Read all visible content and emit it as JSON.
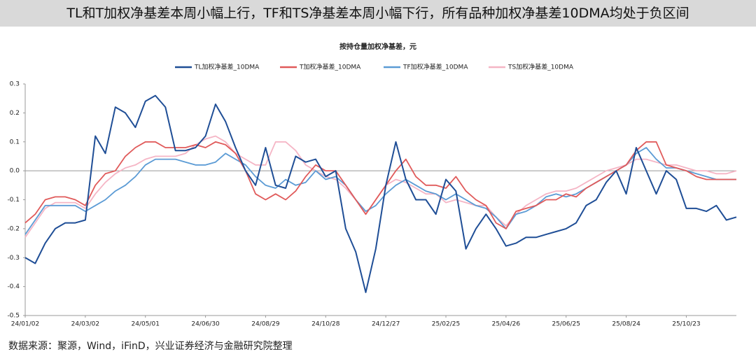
{
  "chart_data": {
    "type": "line",
    "title": "TL和T加权净基差本周小幅上行，TF和TS净基差本周小幅下行，所有品种加权净基差10DMA均处于负区间",
    "subtitle": "按持仓量加权净基差，元",
    "source": "数据来源：聚源，Wind，iFinD，兴业证券经济与金融研究院整理",
    "categories": [
      "24/01/02",
      null,
      null,
      null,
      null,
      null,
      "24/03/02",
      null,
      null,
      null,
      null,
      null,
      "24/05/01",
      null,
      null,
      null,
      null,
      null,
      "24/06/30",
      null,
      null,
      null,
      null,
      null,
      "24/08/29",
      null,
      null,
      null,
      null,
      null,
      "24/10/28",
      null,
      null,
      null,
      null,
      null,
      "24/12/27",
      null,
      null,
      null,
      null,
      null,
      "25/02/25",
      null,
      null,
      null,
      null,
      null,
      "25/04/26",
      null,
      null,
      null,
      null,
      null,
      "25/06/25",
      null,
      null,
      null,
      null,
      null,
      "25/08/24",
      null,
      null,
      null,
      null,
      null,
      "25/10/23",
      null,
      null,
      null,
      null,
      null
    ],
    "ylim": [
      -0.5,
      0.3
    ],
    "yticks": [
      -0.5,
      -0.4,
      -0.3,
      -0.2,
      -0.1,
      {
        "value": 0,
        "label": "0.0"
      },
      0.1,
      0.2,
      0.3
    ],
    "series": [
      {
        "name": "TL加权净基差_10DMA",
        "color": "#1f4e96",
        "values": [
          -0.3,
          -0.32,
          -0.25,
          -0.2,
          -0.18,
          -0.18,
          -0.17,
          0.12,
          0.06,
          0.22,
          0.2,
          0.15,
          0.24,
          0.26,
          0.22,
          0.07,
          0.07,
          0.08,
          0.12,
          0.23,
          0.17,
          0.08,
          0.0,
          -0.05,
          0.08,
          -0.05,
          -0.06,
          0.05,
          0.03,
          0.04,
          -0.02,
          0.0,
          -0.2,
          -0.28,
          -0.42,
          -0.27,
          -0.05,
          0.1,
          -0.03,
          -0.1,
          -0.1,
          -0.15,
          -0.03,
          -0.07,
          -0.27,
          -0.2,
          -0.15,
          -0.2,
          -0.26,
          -0.25,
          -0.23,
          -0.23,
          -0.22,
          -0.21,
          -0.2,
          -0.18,
          -0.12,
          -0.1,
          -0.04,
          0.0,
          -0.08,
          0.08,
          0.0,
          -0.08,
          0.0,
          -0.03,
          -0.13,
          -0.13,
          -0.14,
          -0.12,
          -0.17,
          -0.16
        ]
      },
      {
        "name": "T加权净基差_10DMA",
        "color": "#e05a5a",
        "values": [
          -0.18,
          -0.15,
          -0.1,
          -0.09,
          -0.09,
          -0.1,
          -0.12,
          -0.05,
          -0.01,
          0.0,
          0.05,
          0.08,
          0.1,
          0.1,
          0.08,
          0.08,
          0.08,
          0.09,
          0.08,
          0.1,
          0.09,
          0.06,
          0.0,
          -0.08,
          -0.1,
          -0.08,
          -0.1,
          -0.07,
          -0.02,
          0.02,
          0.0,
          0.0,
          -0.05,
          -0.1,
          -0.15,
          -0.1,
          -0.05,
          0.0,
          0.04,
          -0.02,
          -0.05,
          -0.05,
          -0.06,
          -0.02,
          -0.07,
          -0.1,
          -0.12,
          -0.18,
          -0.2,
          -0.14,
          -0.13,
          -0.12,
          -0.1,
          -0.1,
          -0.08,
          -0.09,
          -0.06,
          -0.04,
          -0.02,
          0.0,
          0.02,
          0.07,
          0.1,
          0.1,
          0.02,
          0.01,
          0.0,
          -0.02,
          -0.03,
          -0.03,
          -0.03,
          -0.03
        ]
      },
      {
        "name": "TF加权净基差_10DMA",
        "color": "#5b9bd5",
        "values": [
          -0.22,
          -0.17,
          -0.12,
          -0.12,
          -0.12,
          -0.12,
          -0.14,
          -0.12,
          -0.1,
          -0.07,
          -0.05,
          -0.02,
          0.02,
          0.04,
          0.04,
          0.04,
          0.03,
          0.02,
          0.02,
          0.03,
          0.06,
          0.04,
          0.02,
          -0.02,
          -0.05,
          -0.06,
          -0.03,
          -0.05,
          -0.04,
          0.0,
          -0.03,
          -0.02,
          -0.05,
          -0.1,
          -0.14,
          -0.12,
          -0.08,
          -0.05,
          -0.03,
          -0.05,
          -0.07,
          -0.08,
          -0.1,
          -0.08,
          -0.1,
          -0.12,
          -0.13,
          -0.16,
          -0.2,
          -0.15,
          -0.14,
          -0.12,
          -0.09,
          -0.08,
          -0.09,
          -0.08,
          -0.06,
          -0.04,
          -0.02,
          0.0,
          0.02,
          0.06,
          0.08,
          0.04,
          0.01,
          0.01,
          0.0,
          -0.01,
          -0.02,
          -0.03,
          -0.03,
          -0.03
        ]
      },
      {
        "name": "TS加权净基差_10DMA",
        "color": "#f5b5c5",
        "values": [
          -0.23,
          -0.18,
          -0.13,
          -0.11,
          -0.11,
          -0.11,
          -0.13,
          -0.08,
          -0.04,
          -0.01,
          0.01,
          0.02,
          0.04,
          0.05,
          0.05,
          0.05,
          0.06,
          0.09,
          0.11,
          0.12,
          0.1,
          0.06,
          0.04,
          0.02,
          0.02,
          0.1,
          0.1,
          0.07,
          0.02,
          0.0,
          -0.02,
          -0.03,
          -0.06,
          -0.1,
          -0.15,
          -0.1,
          -0.05,
          -0.03,
          -0.04,
          -0.06,
          -0.08,
          -0.08,
          -0.11,
          -0.1,
          -0.11,
          -0.12,
          -0.12,
          -0.16,
          -0.19,
          -0.15,
          -0.12,
          -0.1,
          -0.08,
          -0.07,
          -0.07,
          -0.06,
          -0.04,
          -0.02,
          0.0,
          0.01,
          0.02,
          0.04,
          0.04,
          0.03,
          0.02,
          0.02,
          0.01,
          0.0,
          0.0,
          -0.01,
          -0.01,
          0.0
        ]
      }
    ]
  }
}
